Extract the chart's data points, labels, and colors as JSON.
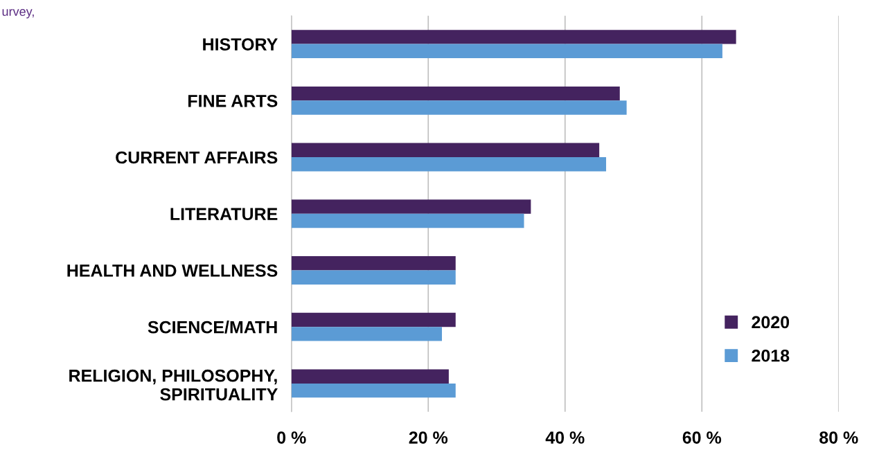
{
  "chart_data": {
    "type": "bar",
    "orientation": "horizontal",
    "categories": [
      "HISTORY",
      "FINE ARTS",
      "CURRENT AFFAIRS",
      "LITERATURE",
      "HEALTH AND WELLNESS",
      "SCIENCE/MATH",
      "RELIGION, PHILOSOPHY,\nSPIRITUALITY"
    ],
    "series": [
      {
        "name": "2020",
        "color": "#44235f",
        "values": [
          65,
          48,
          45,
          35,
          24,
          24,
          23
        ]
      },
      {
        "name": "2018",
        "color": "#5b9bd5",
        "values": [
          63,
          49,
          46,
          34,
          24,
          22,
          24
        ]
      }
    ],
    "xlim": [
      0,
      80
    ],
    "xticks": [
      {
        "value": 0,
        "label": "0 %"
      },
      {
        "value": 20,
        "label": "20 %"
      },
      {
        "value": 40,
        "label": "40 %"
      },
      {
        "value": 60,
        "label": "60 %"
      },
      {
        "value": 80,
        "label": "80 %"
      }
    ],
    "grid": "x",
    "legend": "bottom right",
    "annotations": [
      "urvey,"
    ]
  }
}
